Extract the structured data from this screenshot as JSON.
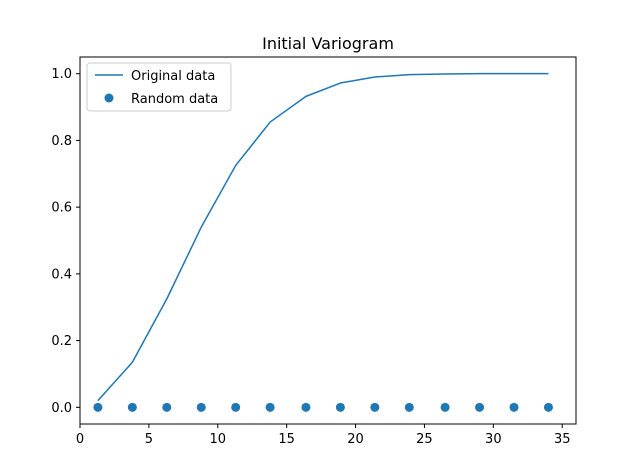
{
  "chart_data": {
    "type": "line",
    "title": "Initial Variogram",
    "xlabel": "",
    "ylabel": "",
    "xlim": [
      0,
      36
    ],
    "ylim": [
      -0.05,
      1.05
    ],
    "xticks": [
      0,
      5,
      10,
      15,
      20,
      25,
      30,
      35
    ],
    "yticks": [
      0.0,
      0.2,
      0.4,
      0.6,
      0.8,
      1.0
    ],
    "xtick_labels": [
      "0",
      "5",
      "10",
      "15",
      "20",
      "25",
      "30",
      "35"
    ],
    "ytick_labels": [
      "0.0",
      "0.2",
      "0.4",
      "0.6",
      "0.8",
      "1.0"
    ],
    "grid": false,
    "legend_position": "upper-left",
    "x": [
      1.3,
      3.8,
      6.3,
      8.8,
      11.3,
      13.8,
      16.4,
      18.9,
      21.4,
      23.9,
      26.5,
      29.0,
      31.5,
      34.0
    ],
    "series": [
      {
        "name": "Original data",
        "kind": "line",
        "color": "#1f77b4",
        "values": [
          0.02,
          0.135,
          0.325,
          0.54,
          0.725,
          0.855,
          0.932,
          0.972,
          0.99,
          0.997,
          0.999,
          1.0,
          1.0,
          1.0
        ]
      },
      {
        "name": "Random data",
        "kind": "scatter",
        "color": "#1f77b4",
        "values": [
          0,
          0,
          0,
          0,
          0,
          0,
          0,
          0,
          0,
          0,
          0,
          0,
          0,
          0
        ]
      }
    ]
  }
}
